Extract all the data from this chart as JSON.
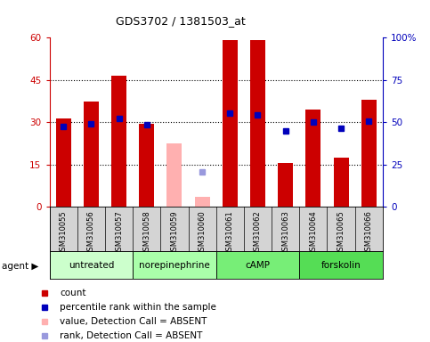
{
  "title": "GDS3702 / 1381503_at",
  "samples": [
    "GSM310055",
    "GSM310056",
    "GSM310057",
    "GSM310058",
    "GSM310059",
    "GSM310060",
    "GSM310061",
    "GSM310062",
    "GSM310063",
    "GSM310064",
    "GSM310065",
    "GSM310066"
  ],
  "red_bars": [
    31.5,
    37.5,
    46.5,
    29.5,
    null,
    null,
    59.0,
    59.0,
    15.5,
    34.5,
    17.5,
    38.0
  ],
  "pink_bars": [
    null,
    null,
    null,
    null,
    22.5,
    3.5,
    null,
    null,
    null,
    null,
    null,
    null
  ],
  "blue_squares": [
    47.5,
    49.0,
    52.5,
    48.5,
    null,
    null,
    55.5,
    54.5,
    45.0,
    50.0,
    46.5,
    50.5
  ],
  "lightblue_squares": [
    null,
    null,
    null,
    null,
    null,
    20.5,
    null,
    null,
    null,
    null,
    null,
    null
  ],
  "agents": [
    {
      "label": "untreated",
      "start": 0,
      "end": 3,
      "color": "#ccffcc"
    },
    {
      "label": "norepinephrine",
      "start": 3,
      "end": 6,
      "color": "#aaffaa"
    },
    {
      "label": "cAMP",
      "start": 6,
      "end": 9,
      "color": "#77ee77"
    },
    {
      "label": "forskolin",
      "start": 9,
      "end": 12,
      "color": "#55dd55"
    }
  ],
  "ylim_left": [
    0,
    60
  ],
  "ylim_right": [
    0,
    100
  ],
  "yticks_left": [
    0,
    15,
    30,
    45,
    60
  ],
  "yticks_right": [
    0,
    25,
    50,
    75,
    100
  ],
  "ytick_labels_right": [
    "0",
    "25",
    "50",
    "75",
    "100%"
  ],
  "red_color": "#cc0000",
  "pink_color": "#ffb0b0",
  "blue_color": "#0000bb",
  "lightblue_color": "#9999dd",
  "sample_bg": "#d4d4d4",
  "plot_bg": "#ffffff"
}
